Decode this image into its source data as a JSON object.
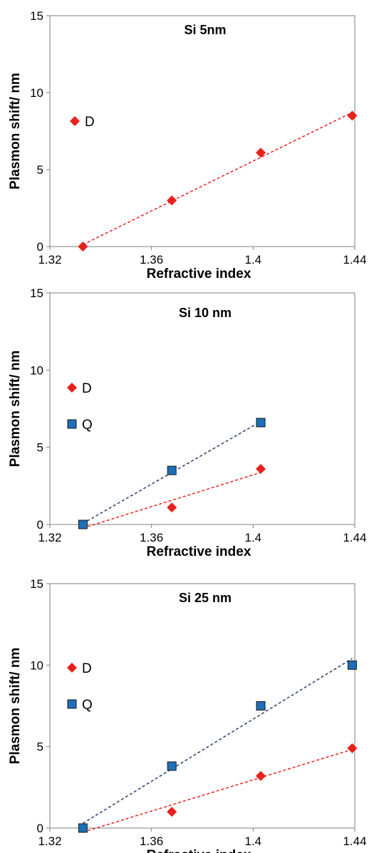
{
  "chart_data": [
    {
      "type": "scatter",
      "title": "Si 5nm",
      "xlabel": "Refractive index",
      "ylabel": "Plasmon shift/ nm",
      "xlim": [
        1.32,
        1.44
      ],
      "ylim": [
        0,
        15
      ],
      "xticks": [
        "1.32",
        "1.36",
        "1.4",
        "1.44"
      ],
      "yticks": [
        "0",
        "5",
        "10",
        "15"
      ],
      "grid": false,
      "legend_position": "left",
      "series": [
        {
          "name": "D",
          "marker": "diamond",
          "color": "#e8201c",
          "line_color": "#e8201c",
          "points": [
            {
              "x": 1.333,
              "y": 0
            },
            {
              "x": 1.368,
              "y": 3.0
            },
            {
              "x": 1.403,
              "y": 6.1
            },
            {
              "x": 1.439,
              "y": 8.5
            }
          ]
        }
      ]
    },
    {
      "type": "scatter",
      "title": "Si 10 nm",
      "xlabel": "Refractive index",
      "ylabel": "Plasmon shift/ nm",
      "xlim": [
        1.32,
        1.44
      ],
      "ylim": [
        0,
        15
      ],
      "xticks": [
        "1.32",
        "1.36",
        "1.4",
        "1.44"
      ],
      "yticks": [
        "0",
        "5",
        "10",
        "15"
      ],
      "grid": false,
      "legend_position": "left",
      "series": [
        {
          "name": "D",
          "marker": "diamond",
          "color": "#e8201c",
          "line_color": "#e8201c",
          "points": [
            {
              "x": 1.333,
              "y": 0
            },
            {
              "x": 1.368,
              "y": 1.1
            },
            {
              "x": 1.403,
              "y": 3.6
            }
          ]
        },
        {
          "name": "Q",
          "marker": "square",
          "color": "#1c6fb8",
          "line_color": "#2a3d6b",
          "points": [
            {
              "x": 1.333,
              "y": 0
            },
            {
              "x": 1.368,
              "y": 3.5
            },
            {
              "x": 1.403,
              "y": 6.6
            }
          ]
        }
      ]
    },
    {
      "type": "scatter",
      "title": "Si 25 nm",
      "xlabel": "Refractive index",
      "ylabel": "Plasmon shift/ nm",
      "xlim": [
        1.32,
        1.44
      ],
      "ylim": [
        0,
        15
      ],
      "xticks": [
        "1.32",
        "1.36",
        "1.4",
        "1.44"
      ],
      "yticks": [
        "0",
        "5",
        "10",
        "15"
      ],
      "grid": false,
      "legend_position": "left",
      "series": [
        {
          "name": "D",
          "marker": "diamond",
          "color": "#e8201c",
          "line_color": "#e8201c",
          "points": [
            {
              "x": 1.333,
              "y": 0
            },
            {
              "x": 1.368,
              "y": 1.0
            },
            {
              "x": 1.403,
              "y": 3.2
            },
            {
              "x": 1.439,
              "y": 4.9
            }
          ]
        },
        {
          "name": "Q",
          "marker": "square",
          "color": "#1c6fb8",
          "line_color": "#2a3d6b",
          "points": [
            {
              "x": 1.333,
              "y": 0
            },
            {
              "x": 1.368,
              "y": 3.8
            },
            {
              "x": 1.403,
              "y": 7.5
            },
            {
              "x": 1.439,
              "y": 10.0
            }
          ]
        }
      ]
    }
  ]
}
